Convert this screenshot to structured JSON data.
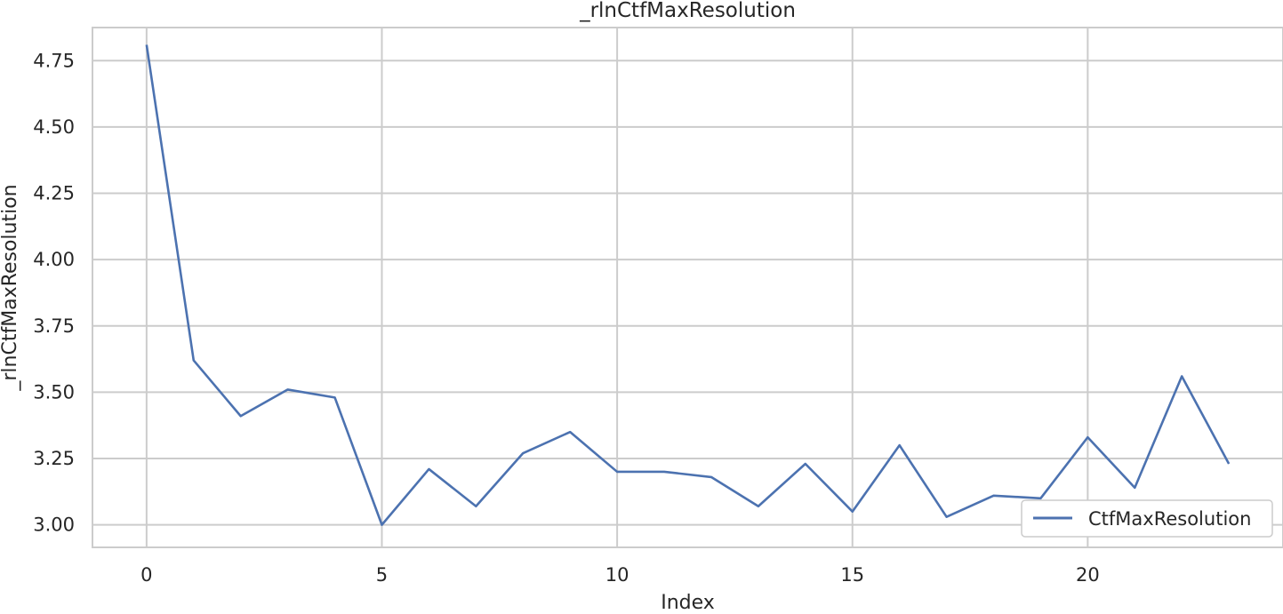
{
  "chart_data": {
    "type": "line",
    "title": "_rlnCtfMaxResolution",
    "xlabel": "Index",
    "ylabel": "_rlnCtfMaxResolution",
    "x": [
      0,
      1,
      2,
      3,
      4,
      5,
      6,
      7,
      8,
      9,
      10,
      11,
      12,
      13,
      14,
      15,
      16,
      17,
      18,
      19,
      20,
      21,
      22,
      23
    ],
    "series": [
      {
        "name": "CtfMaxResolution",
        "color": "#4c72b0",
        "values": [
          4.81,
          3.62,
          3.41,
          3.51,
          3.48,
          3.0,
          3.21,
          3.07,
          3.27,
          3.35,
          3.2,
          3.2,
          3.18,
          3.07,
          3.23,
          3.05,
          3.3,
          3.03,
          3.11,
          3.1,
          3.33,
          3.14,
          3.56,
          3.23
        ]
      }
    ],
    "xlim": [
      -1.15,
      24.15
    ],
    "ylim": [
      2.915,
      4.875
    ],
    "xticks": [
      0,
      5,
      10,
      15,
      20
    ],
    "xtick_labels": [
      "0",
      "5",
      "10",
      "15",
      "20"
    ],
    "yticks": [
      3.0,
      3.25,
      3.5,
      3.75,
      4.0,
      4.25,
      4.5,
      4.75
    ],
    "ytick_labels": [
      "3.00",
      "3.25",
      "3.50",
      "3.75",
      "4.00",
      "4.25",
      "4.50",
      "4.75"
    ],
    "grid": true,
    "legend_position": "lower-right",
    "colors": {
      "grid": "#cccccc",
      "frame": "#cccccc",
      "background": "#ffffff"
    }
  }
}
